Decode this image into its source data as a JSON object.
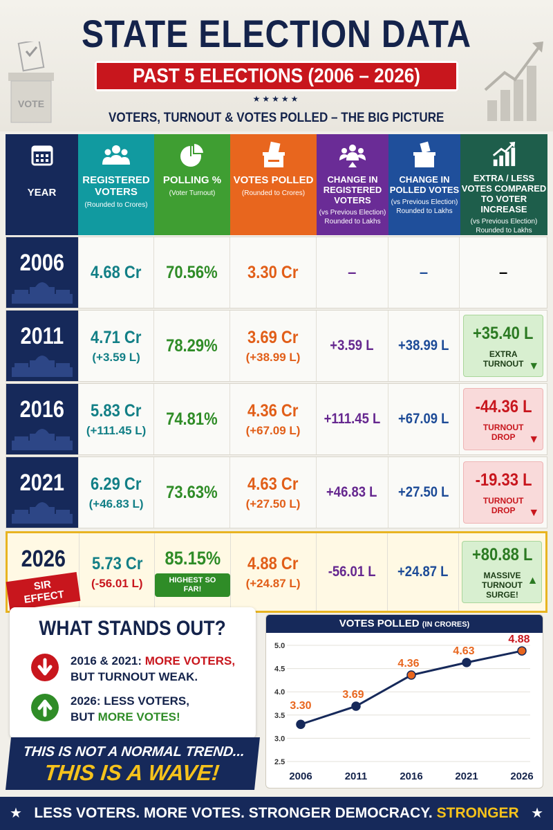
{
  "header": {
    "title": "STATE ELECTION DATA",
    "subtitle": "PAST 5 ELECTIONS (2006 – 2026)",
    "stars": "★★★★★",
    "tagline": "VOTERS, TURNOUT & VOTES POLLED – THE BIG PICTURE",
    "vote_box_label": "VOTE"
  },
  "table": {
    "headers": {
      "year": "YEAR",
      "registered": "REGISTERED VOTERS",
      "registered_note": "(Rounded to Crores)",
      "polling": "POLLING %",
      "polling_note": "(Voter Turnout)",
      "votes": "VOTES POLLED",
      "votes_note": "(Rounded to Crores)",
      "change_reg": "CHANGE IN REGISTERED VOTERS",
      "change_reg_note": "(vs Previous Election) Rounded to Lakhs",
      "change_poll": "CHANGE IN POLLED VOTES",
      "change_poll_note": "(vs Previous Election) Rounded to Lakhs",
      "extra": "EXTRA / LESS VOTES COMPARED TO VOTER INCREASE",
      "extra_note": "(vs Previous Election) Rounded to Lakhs"
    },
    "rows": [
      {
        "year": "2006",
        "registered": "4.68 Cr",
        "registered_change": "",
        "polling": "70.56%",
        "votes": "3.30 Cr",
        "votes_change": "",
        "change_reg": "–",
        "change_poll": "–",
        "extra": "–",
        "extra_label": ""
      },
      {
        "year": "2011",
        "registered": "4.71 Cr",
        "registered_change": "(+3.59 L)",
        "polling": "78.29%",
        "votes": "3.69 Cr",
        "votes_change": "(+38.99 L)",
        "change_reg": "+3.59 L",
        "change_poll": "+38.99 L",
        "extra": "+35.40 L",
        "extra_label": "EXTRA TURNOUT"
      },
      {
        "year": "2016",
        "registered": "5.83 Cr",
        "registered_change": "(+111.45 L)",
        "polling": "74.81%",
        "votes": "4.36 Cr",
        "votes_change": "(+67.09 L)",
        "change_reg": "+111.45 L",
        "change_poll": "+67.09 L",
        "extra": "-44.36 L",
        "extra_label": "TURNOUT DROP"
      },
      {
        "year": "2021",
        "registered": "6.29 Cr",
        "registered_change": "(+46.83 L)",
        "polling": "73.63%",
        "votes": "4.63 Cr",
        "votes_change": "(+27.50 L)",
        "change_reg": "+46.83 L",
        "change_poll": "+27.50 L",
        "extra": "-19.33 L",
        "extra_label": "TURNOUT DROP"
      },
      {
        "year": "2026",
        "registered": "5.73 Cr",
        "registered_change": "(-56.01 L)",
        "polling": "85.15%",
        "votes": "4.88 Cr",
        "votes_change": "(+24.87 L)",
        "change_reg": "-56.01 L",
        "change_poll": "+24.87 L",
        "extra": "+80.88 L",
        "extra_label": "MASSIVE TURNOUT SURGE!",
        "tag": "SIR EFFECT",
        "badge": "HIGHEST SO FAR!"
      }
    ]
  },
  "standout": {
    "title": "WHAT STANDS OUT?",
    "point1_a": "2016 & 2021: ",
    "point1_b": "MORE VOTERS,",
    "point1_c": "BUT TURNOUT WEAK.",
    "point2_a": "2026: LESS VOTERS,",
    "point2_b": "BUT ",
    "point2_c": "MORE VOTES!"
  },
  "wave": {
    "line1": "THIS IS NOT A NORMAL TREND...",
    "line2": "THIS IS A WAVE!"
  },
  "chart_title": "VOTES POLLED",
  "chart_title_unit": "(IN CRORES)",
  "chart_data": {
    "type": "line",
    "title": "VOTES POLLED (IN CRORES)",
    "categories": [
      "2006",
      "2011",
      "2016",
      "2021",
      "2026"
    ],
    "values": [
      3.3,
      3.69,
      4.36,
      4.63,
      4.88
    ],
    "data_labels": [
      "3.30",
      "3.69",
      "4.36",
      "4.63",
      "4.88"
    ],
    "yticks": [
      "2.5",
      "3.0",
      "3.5",
      "4.0",
      "4.5",
      "5.0"
    ],
    "ylim": [
      2.5,
      5.0
    ],
    "xlabel": "",
    "ylabel": "",
    "grid": true
  },
  "footer": {
    "star": "★",
    "text": "LESS VOTERS. MORE VOTES. STRONGER DEMOCRACY.",
    "highlight": "STRONGER MANDATE."
  },
  "colors": {
    "navy": "#16295a",
    "red": "#c8161d",
    "teal": "#119aa0",
    "green": "#3f9e32",
    "orange": "#e8661e",
    "purple": "#6a2c96",
    "blue": "#1f4f9b",
    "yellow": "#f5c21c"
  }
}
